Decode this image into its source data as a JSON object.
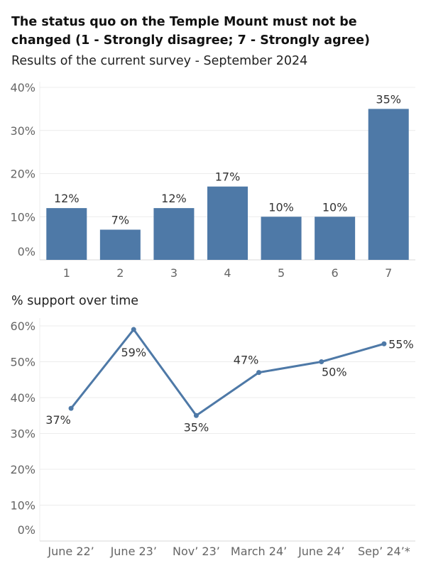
{
  "header": {
    "title": "The status quo on the Temple Mount must not be changed (1 - Strongly disagree; 7 - Strongly agree)",
    "subtitle": "Results of the current survey - September 2024",
    "section2_title": "% support over time"
  },
  "colors": {
    "bar": "#4e79a7",
    "line": "#4e79a7",
    "grid": "#ececec",
    "axis_text": "#666666"
  },
  "chart_data": [
    {
      "type": "bar",
      "title": "Results of the current survey - September 2024",
      "categories": [
        "1",
        "2",
        "3",
        "4",
        "5",
        "6",
        "7"
      ],
      "values": [
        12,
        7,
        12,
        17,
        10,
        10,
        35
      ],
      "value_labels": [
        "12%",
        "7%",
        "12%",
        "17%",
        "10%",
        "10%",
        "35%"
      ],
      "yticks": [
        0,
        10,
        20,
        30,
        40
      ],
      "ytick_labels": [
        "0%",
        "10%",
        "20%",
        "30%",
        "40%"
      ],
      "ylim": [
        0,
        40
      ],
      "grid": true
    },
    {
      "type": "line",
      "title": "% support over time",
      "categories": [
        "June 22’",
        "June 23’",
        "Nov’ 23’",
        "March 24’",
        "June 24’",
        "Sep’ 24’*"
      ],
      "values": [
        37,
        59,
        35,
        47,
        50,
        55
      ],
      "value_labels": [
        "37%",
        "59%",
        "35%",
        "47%",
        "50%",
        "55%"
      ],
      "yticks": [
        0,
        10,
        20,
        30,
        40,
        50,
        60
      ],
      "ytick_labels": [
        "0%",
        "10%",
        "20%",
        "30%",
        "40%",
        "50%",
        "60%"
      ],
      "ylim": [
        0,
        60
      ],
      "grid": true
    }
  ]
}
